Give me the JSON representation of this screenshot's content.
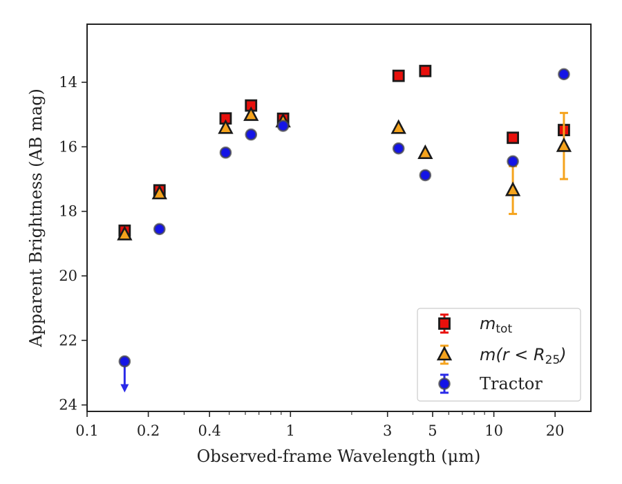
{
  "chart_data": {
    "type": "scatter",
    "title": "",
    "xlabel": "Observed-frame Wavelength (μm)",
    "ylabel": "Apparent Brightness (AB mag)",
    "xscale": "log",
    "xlim": [
      0.1,
      30
    ],
    "ylim": [
      24.2,
      12.2
    ],
    "y_inverted": true,
    "grid": false,
    "legend_position": "lower-right",
    "x_ticks": [
      {
        "value": 0.1,
        "label": "0.1"
      },
      {
        "value": 0.2,
        "label": "0.2"
      },
      {
        "value": 0.4,
        "label": "0.4"
      },
      {
        "value": 1,
        "label": "1"
      },
      {
        "value": 3,
        "label": "3"
      },
      {
        "value": 5,
        "label": "5"
      },
      {
        "value": 10,
        "label": "10"
      },
      {
        "value": 20,
        "label": "20"
      }
    ],
    "y_ticks": [
      {
        "value": 14,
        "label": "14"
      },
      {
        "value": 16,
        "label": "16"
      },
      {
        "value": 18,
        "label": "18"
      },
      {
        "value": 20,
        "label": "20"
      },
      {
        "value": 22,
        "label": "22"
      },
      {
        "value": 24,
        "label": "24"
      }
    ],
    "series": [
      {
        "name": "m_tot",
        "legend_base": "m",
        "legend_sub": "tot",
        "marker": "square",
        "face_color": "#e8100c",
        "edge_color": "#1a1a1a",
        "error_color": "#e8100c",
        "points": [
          {
            "x": 0.153,
            "y": 18.6
          },
          {
            "x": 0.227,
            "y": 17.35
          },
          {
            "x": 0.48,
            "y": 15.12
          },
          {
            "x": 0.64,
            "y": 14.72
          },
          {
            "x": 0.92,
            "y": 15.13
          },
          {
            "x": 3.4,
            "y": 13.8
          },
          {
            "x": 4.6,
            "y": 13.65
          },
          {
            "x": 12.4,
            "y": 15.72
          },
          {
            "x": 22.1,
            "y": 15.48
          }
        ]
      },
      {
        "name": "m(r < R25)",
        "legend_base": "m(r < R",
        "legend_sub": "25",
        "legend_tail": ")",
        "marker": "triangle",
        "face_color": "#f5a31c",
        "edge_color": "#1a1a1a",
        "error_color": "#f5a31c",
        "points": [
          {
            "x": 0.153,
            "y": 18.72
          },
          {
            "x": 0.227,
            "y": 17.45
          },
          {
            "x": 0.48,
            "y": 15.42
          },
          {
            "x": 0.64,
            "y": 15.02
          },
          {
            "x": 0.92,
            "y": 15.22
          },
          {
            "x": 3.4,
            "y": 15.42
          },
          {
            "x": 4.6,
            "y": 16.2
          },
          {
            "x": 12.4,
            "y": 17.35,
            "err_low": 16.6,
            "err_high": 18.08
          },
          {
            "x": 22.1,
            "y": 15.98,
            "err_low": 14.95,
            "err_high": 17.0
          }
        ]
      },
      {
        "name": "Tractor",
        "legend_base": "Tractor",
        "marker": "circle",
        "face_color": "#1414e6",
        "edge_color": "#4a4a4a",
        "error_color": "#2a2ae8",
        "points": [
          {
            "x": 0.153,
            "y": 22.65,
            "upper_limit": true,
            "limit_end": 23.55
          },
          {
            "x": 0.227,
            "y": 18.55
          },
          {
            "x": 0.48,
            "y": 16.18
          },
          {
            "x": 0.64,
            "y": 15.62
          },
          {
            "x": 0.92,
            "y": 15.35
          },
          {
            "x": 3.4,
            "y": 16.05
          },
          {
            "x": 4.6,
            "y": 16.88
          },
          {
            "x": 12.4,
            "y": 16.45
          },
          {
            "x": 22.1,
            "y": 13.75
          }
        ]
      }
    ]
  }
}
